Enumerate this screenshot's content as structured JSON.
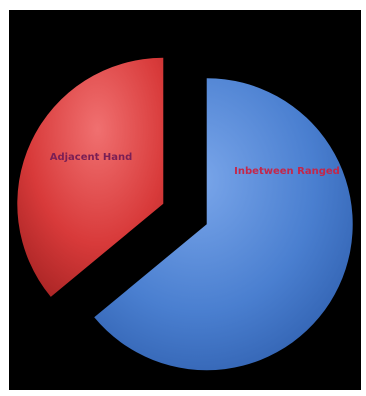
{
  "chart_data": {
    "type": "pie",
    "title": "",
    "legend": "none",
    "exploded": true,
    "slices": [
      {
        "label": "Inbetween Ranged",
        "value": 64,
        "color": "#4a7fd0",
        "label_color": "#c4274a"
      },
      {
        "label": "Adjacent Hand",
        "value": 36,
        "color": "#d83a3a",
        "label_color": "#7a1f55"
      }
    ]
  }
}
